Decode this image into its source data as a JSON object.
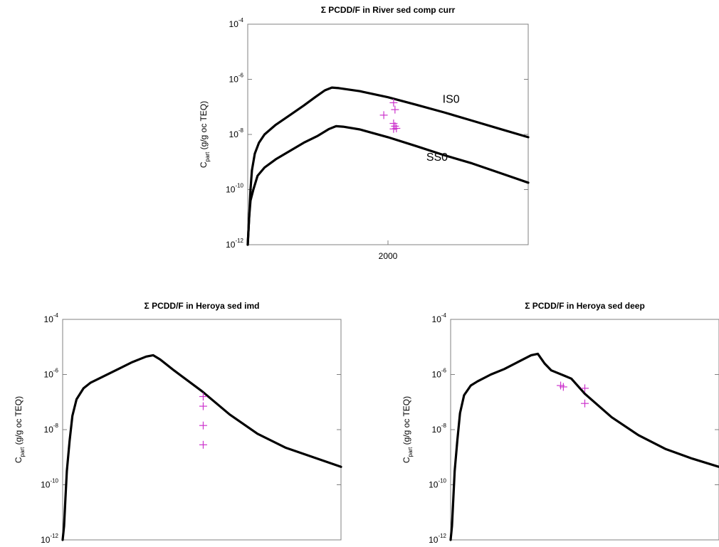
{
  "chart_data": [
    {
      "type": "line",
      "title": "Σ PCDD/F in River sed comp curr",
      "ylabel": "C",
      "ylabel_sub": "part",
      "ylabel_rest": " (g/g oc TEQ)",
      "yscale": "log",
      "ylim_exp": [
        -12,
        -4
      ],
      "yticks": [
        {
          "base": "10",
          "exp": "-4",
          "value_exp": -4
        },
        {
          "base": "10",
          "exp": "-6",
          "value_exp": -6
        },
        {
          "base": "10",
          "exp": "-8",
          "value_exp": -8
        },
        {
          "base": "10",
          "exp": "-10",
          "value_exp": -10
        },
        {
          "base": "10",
          "exp": "-12",
          "value_exp": -12
        }
      ],
      "xlim": [
        1900,
        2100
      ],
      "xticks": [
        {
          "label": "2000",
          "value": 2000
        }
      ],
      "series": [
        {
          "name": "IS0",
          "points": [
            [
              1900,
              -12.0
            ],
            [
              1901,
              -11.0
            ],
            [
              1902,
              -10.0
            ],
            [
              1903,
              -9.3
            ],
            [
              1905,
              -8.7
            ],
            [
              1908,
              -8.3
            ],
            [
              1912,
              -8.0
            ],
            [
              1920,
              -7.65
            ],
            [
              1930,
              -7.3
            ],
            [
              1940,
              -6.95
            ],
            [
              1948,
              -6.65
            ],
            [
              1955,
              -6.4
            ],
            [
              1960,
              -6.3
            ],
            [
              1965,
              -6.32
            ],
            [
              1980,
              -6.43
            ],
            [
              2000,
              -6.65
            ],
            [
              2020,
              -6.92
            ],
            [
              2040,
              -7.2
            ],
            [
              2060,
              -7.5
            ],
            [
              2080,
              -7.8
            ],
            [
              2100,
              -8.1
            ]
          ]
        },
        {
          "name": "SS0",
          "points": [
            [
              1900,
              -12.0
            ],
            [
              1901,
              -11.0
            ],
            [
              1902,
              -10.4
            ],
            [
              1904,
              -10.0
            ],
            [
              1907,
              -9.5
            ],
            [
              1912,
              -9.2
            ],
            [
              1920,
              -8.9
            ],
            [
              1930,
              -8.6
            ],
            [
              1940,
              -8.3
            ],
            [
              1950,
              -8.05
            ],
            [
              1958,
              -7.8
            ],
            [
              1963,
              -7.7
            ],
            [
              1968,
              -7.72
            ],
            [
              1980,
              -7.82
            ],
            [
              2000,
              -8.1
            ],
            [
              2020,
              -8.42
            ],
            [
              2040,
              -8.75
            ],
            [
              2060,
              -9.05
            ],
            [
              2080,
              -9.4
            ],
            [
              2100,
              -9.75
            ]
          ]
        }
      ],
      "series_label_positions": [
        {
          "series": "IS0",
          "x": 2045,
          "y_exp": -6.85
        },
        {
          "series": "SS0",
          "x": 2035,
          "y_exp": -8.95
        }
      ],
      "observations": [
        [
          1997,
          -7.3
        ],
        [
          2004,
          -6.85
        ],
        [
          2005,
          -7.1
        ],
        [
          2004,
          -7.6
        ],
        [
          2005,
          -7.7
        ],
        [
          2004,
          -7.8
        ],
        [
          2006,
          -7.78
        ]
      ]
    },
    {
      "type": "line",
      "title": "Σ PCDD/F in Heroya sed imd",
      "ylabel": "C",
      "ylabel_sub": "part",
      "ylabel_rest": " (g/g oc TEQ)",
      "yscale": "log",
      "ylim_exp": [
        -12,
        -4
      ],
      "yticks": [
        {
          "base": "10",
          "exp": "-4",
          "value_exp": -4
        },
        {
          "base": "10",
          "exp": "-6",
          "value_exp": -6
        },
        {
          "base": "10",
          "exp": "-8",
          "value_exp": -8
        },
        {
          "base": "10",
          "exp": "-10",
          "value_exp": -10
        },
        {
          "base": "10",
          "exp": "-12",
          "value_exp": -12
        }
      ],
      "xlim": [
        1900,
        2100
      ],
      "xticks": [],
      "series": [
        {
          "name": "",
          "points": [
            [
              1900,
              -12.0
            ],
            [
              1901,
              -11.5
            ],
            [
              1902,
              -10.5
            ],
            [
              1903,
              -9.5
            ],
            [
              1905,
              -8.4
            ],
            [
              1907,
              -7.5
            ],
            [
              1910,
              -6.9
            ],
            [
              1915,
              -6.5
            ],
            [
              1920,
              -6.3
            ],
            [
              1930,
              -6.05
            ],
            [
              1940,
              -5.8
            ],
            [
              1950,
              -5.55
            ],
            [
              1960,
              -5.35
            ],
            [
              1965,
              -5.3
            ],
            [
              1970,
              -5.45
            ],
            [
              1980,
              -5.85
            ],
            [
              2000,
              -6.6
            ],
            [
              2020,
              -7.45
            ],
            [
              2040,
              -8.15
            ],
            [
              2060,
              -8.65
            ],
            [
              2080,
              -9.0
            ],
            [
              2100,
              -9.35
            ]
          ]
        }
      ],
      "observations": [
        [
          2001,
          -6.8
        ],
        [
          2001,
          -7.15
        ],
        [
          2001,
          -7.85
        ],
        [
          2001,
          -8.55
        ]
      ]
    },
    {
      "type": "line",
      "title": "Σ PCDD/F in Heroya sed deep",
      "ylabel": "C",
      "ylabel_sub": "part",
      "ylabel_rest": " (g/g oc TEQ)",
      "yscale": "log",
      "ylim_exp": [
        -12,
        -4
      ],
      "yticks": [
        {
          "base": "10",
          "exp": "-4",
          "value_exp": -4
        },
        {
          "base": "10",
          "exp": "-6",
          "value_exp": -6
        },
        {
          "base": "10",
          "exp": "-8",
          "value_exp": -8
        },
        {
          "base": "10",
          "exp": "-10",
          "value_exp": -10
        },
        {
          "base": "10",
          "exp": "-12",
          "value_exp": -12
        }
      ],
      "xlim": [
        1900,
        2100
      ],
      "xticks": [],
      "series": [
        {
          "name": "",
          "points": [
            [
              1900,
              -12.0
            ],
            [
              1901,
              -11.5
            ],
            [
              1902,
              -10.5
            ],
            [
              1903,
              -9.5
            ],
            [
              1905,
              -8.4
            ],
            [
              1907,
              -7.4
            ],
            [
              1910,
              -6.75
            ],
            [
              1915,
              -6.4
            ],
            [
              1920,
              -6.25
            ],
            [
              1930,
              -6.0
            ],
            [
              1940,
              -5.8
            ],
            [
              1950,
              -5.55
            ],
            [
              1960,
              -5.3
            ],
            [
              1965,
              -5.25
            ],
            [
              1970,
              -5.6
            ],
            [
              1975,
              -5.85
            ],
            [
              1985,
              -6.05
            ],
            [
              1990,
              -6.15
            ],
            [
              2000,
              -6.7
            ],
            [
              2020,
              -7.55
            ],
            [
              2040,
              -8.2
            ],
            [
              2060,
              -8.7
            ],
            [
              2080,
              -9.05
            ],
            [
              2100,
              -9.35
            ]
          ]
        }
      ],
      "observations": [
        [
          1982,
          -6.4
        ],
        [
          1984,
          -6.45
        ],
        [
          2000,
          -6.5
        ],
        [
          2000,
          -7.05
        ]
      ]
    }
  ],
  "colors": {
    "curve": "#000000",
    "observation": "#cc33cc",
    "axis": "#808080"
  }
}
